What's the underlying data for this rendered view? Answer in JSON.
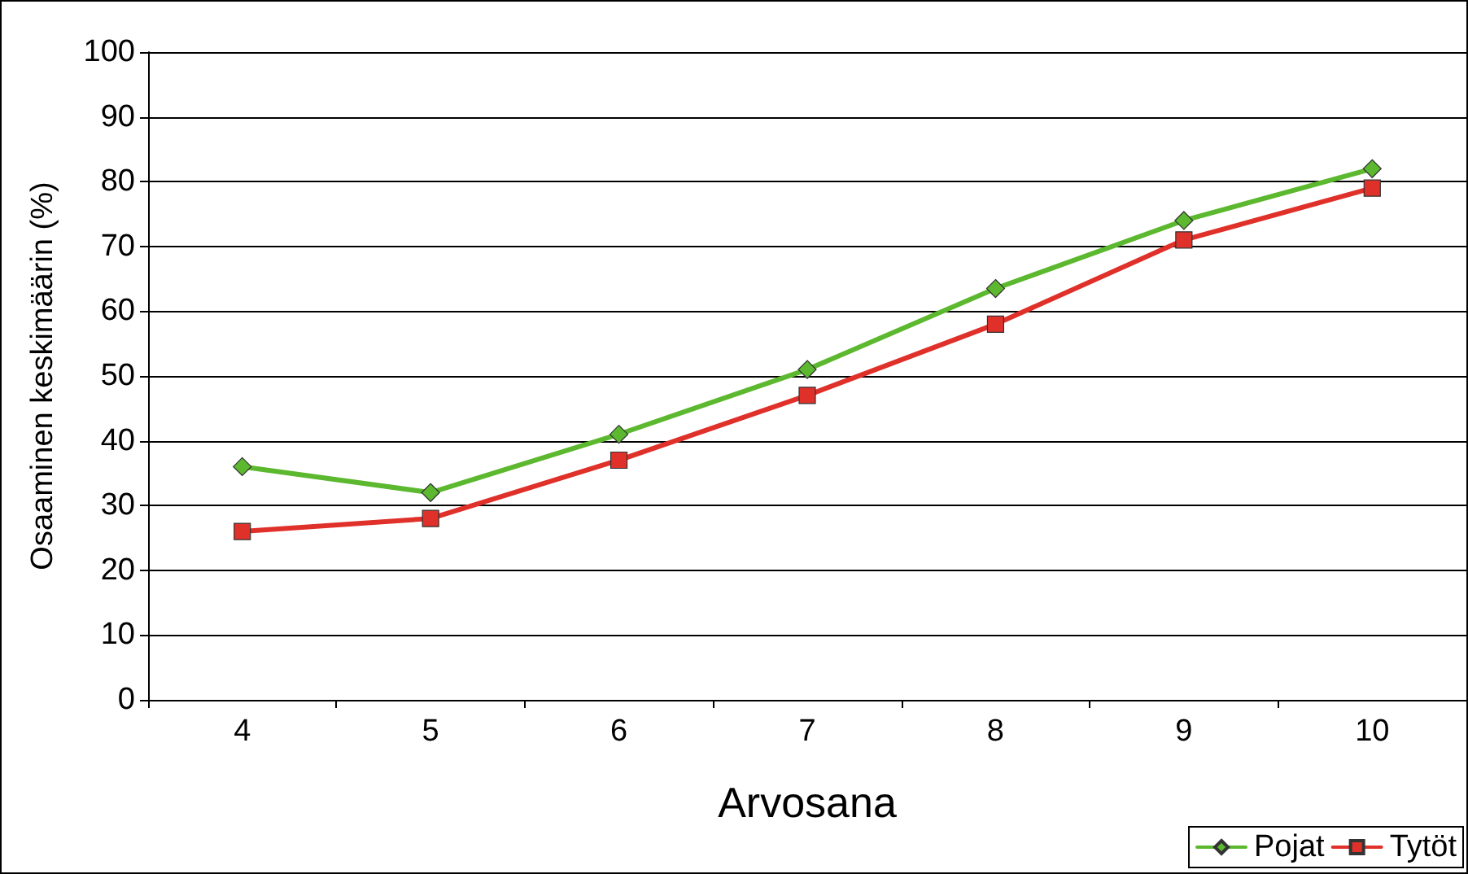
{
  "chart_data": {
    "type": "line",
    "xlabel": "Arvosana",
    "ylabel": "Osaaminen keskimäärin (%)",
    "categories": [
      "4",
      "5",
      "6",
      "7",
      "8",
      "9",
      "10"
    ],
    "series": [
      {
        "name": "Pojat",
        "color": "#5cb82e",
        "values": [
          36,
          32,
          41,
          51,
          63.5,
          74,
          82
        ],
        "marker": "diamond"
      },
      {
        "name": "Tytöt",
        "color": "#e0302a",
        "values": [
          26,
          28,
          37,
          47,
          58,
          71,
          79
        ],
        "marker": "square"
      }
    ],
    "ylim": [
      0,
      100
    ],
    "yticks": [
      0,
      10,
      20,
      30,
      40,
      50,
      60,
      70,
      80,
      90,
      100
    ],
    "grid": "y",
    "legend": "bottom right",
    "line_style": "solid"
  }
}
